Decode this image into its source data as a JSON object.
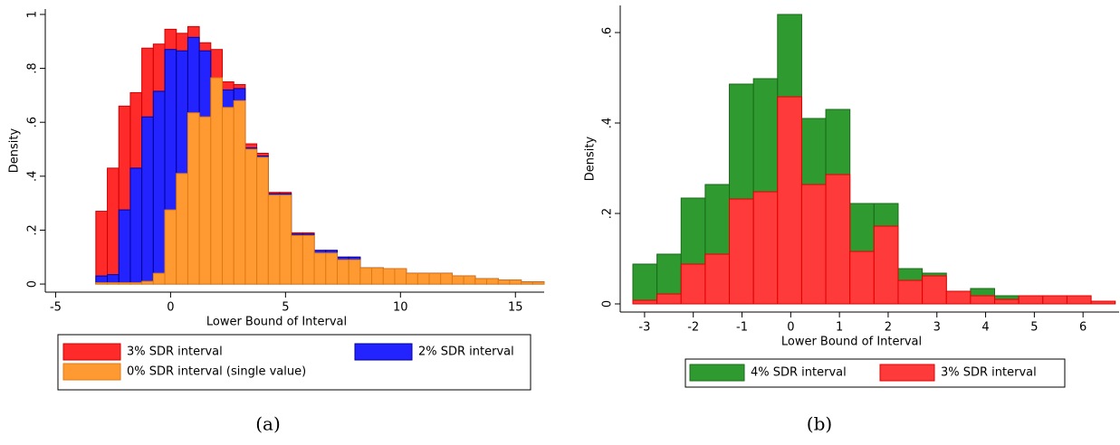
{
  "chart_data": [
    {
      "type": "histogram",
      "caption": "(a)",
      "xlabel": "Lower Bound of Interval",
      "ylabel": "Density",
      "xlim": [
        -5.45,
        16.25
      ],
      "ylim": [
        -0.03,
        1.02
      ],
      "xticks": [
        -5,
        0,
        5,
        10,
        15
      ],
      "yticks": [
        0,
        {
          "value": 0.2,
          "label": ".2"
        },
        {
          "value": 0.4,
          "label": ".4"
        },
        {
          "value": 0.6,
          "label": ".6"
        },
        {
          "value": 0.8,
          "label": ".8"
        },
        1
      ],
      "bins": [
        -3.25,
        -2.75,
        -2.25,
        -1.75,
        -1.25,
        -0.75,
        -0.25,
        0.25,
        0.75,
        1.25,
        1.75,
        2.25,
        2.75,
        3.25,
        3.75,
        4.25,
        4.75,
        5.25,
        5.75,
        6.25,
        6.75,
        7.25,
        7.75,
        8.25,
        8.75,
        9.25,
        9.75,
        10.25,
        10.75,
        11.25,
        11.75,
        12.25,
        12.75,
        13.25,
        13.75,
        14.25,
        14.75,
        15.25,
        15.75,
        16.25
      ],
      "series": [
        {
          "name": "3% SDR interval",
          "color": "#ff2a2a",
          "edgecolor": "#d00000",
          "values": [
            0.27,
            0.43,
            0.66,
            0.71,
            0.875,
            0.89,
            0.945,
            0.93,
            0.955,
            0.895,
            0.87,
            0.75,
            0.74,
            0.52,
            0.485,
            0.34,
            0.34,
            0.19,
            0.19,
            0.125,
            0.125,
            0.1,
            0.1,
            0.06,
            0.06,
            0.057,
            0.057,
            0.04,
            0.04,
            0.04,
            0.04,
            0.03,
            0.03,
            0.02,
            0.02,
            0.015,
            0.015,
            0.008,
            0.008
          ]
        },
        {
          "name": "2% SDR interval",
          "color": "#2323ff",
          "edgecolor": "#00009a",
          "values": [
            0.03,
            0.035,
            0.275,
            0.43,
            0.62,
            0.715,
            0.87,
            0.865,
            0.915,
            0.865,
            0.75,
            0.72,
            0.725,
            0.505,
            0.475,
            0.335,
            0.335,
            0.185,
            0.185,
            0.125,
            0.125,
            0.1,
            0.1,
            0.06,
            0.06,
            0.057,
            0.057,
            0.04,
            0.04,
            0.04,
            0.04,
            0.03,
            0.03,
            0.02,
            0.02,
            0.015,
            0.015,
            0.008,
            0.008
          ]
        },
        {
          "name": "0% SDR interval (single value)",
          "color": "#ff9a33",
          "edgecolor": "#e07a10",
          "values": [
            0.005,
            0.005,
            0.005,
            0.005,
            0.01,
            0.04,
            0.275,
            0.41,
            0.635,
            0.62,
            0.765,
            0.655,
            0.68,
            0.5,
            0.47,
            0.33,
            0.33,
            0.18,
            0.18,
            0.115,
            0.115,
            0.09,
            0.09,
            0.06,
            0.06,
            0.057,
            0.057,
            0.04,
            0.04,
            0.04,
            0.04,
            0.03,
            0.03,
            0.02,
            0.02,
            0.015,
            0.015,
            0.008,
            0.008
          ]
        }
      ]
    },
    {
      "type": "histogram",
      "caption": "(b)",
      "xlabel": "Lower Bound of Interval",
      "ylabel": "Density",
      "xlim": [
        -3.5,
        6.74
      ],
      "ylim": [
        -0.018,
        0.66
      ],
      "xticks": [
        -3,
        -2,
        -1,
        0,
        1,
        2,
        3,
        4,
        5,
        6
      ],
      "yticks": [
        0,
        {
          "value": 0.2,
          "label": ".2"
        },
        {
          "value": 0.4,
          "label": ".4"
        },
        {
          "value": 0.6,
          "label": ".6"
        }
      ],
      "bins": [
        -3.24,
        -2.745,
        -2.25,
        -1.755,
        -1.26,
        -0.765,
        -0.27,
        0.225,
        0.72,
        1.215,
        1.71,
        2.205,
        2.7,
        3.195,
        3.69,
        4.185,
        4.68,
        5.175,
        5.67,
        6.165,
        6.66
      ],
      "series": [
        {
          "name": "4% SDR interval",
          "color": "#2f9a2f",
          "edgecolor": "#1a6a1a",
          "values": [
            0.088,
            0.11,
            0.234,
            0.264,
            0.486,
            0.498,
            0.64,
            0.41,
            0.43,
            0.222,
            0.222,
            0.078,
            0.068,
            0.028,
            0.034,
            0.018,
            0.018,
            0.018,
            0.018,
            0.006
          ]
        },
        {
          "name": "3% SDR interval",
          "color": "#ff3a3a",
          "edgecolor": "#e00000",
          "values": [
            0.008,
            0.022,
            0.088,
            0.11,
            0.232,
            0.248,
            0.458,
            0.264,
            0.286,
            0.116,
            0.172,
            0.052,
            0.062,
            0.028,
            0.018,
            0.01,
            0.018,
            0.018,
            0.018,
            0.006
          ]
        }
      ]
    }
  ]
}
